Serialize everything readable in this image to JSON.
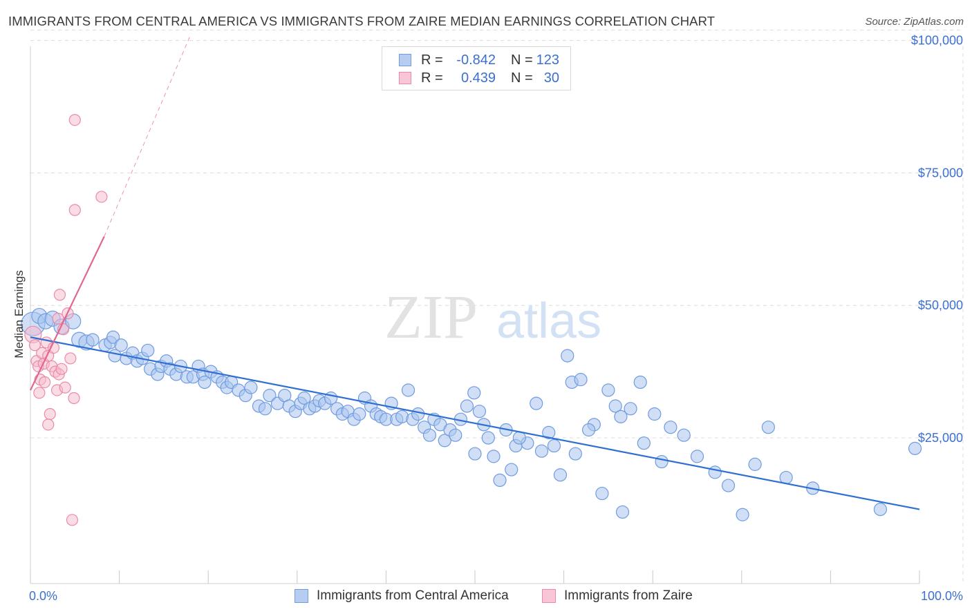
{
  "title": "IMMIGRANTS FROM CENTRAL AMERICA VS IMMIGRANTS FROM ZAIRE MEDIAN EARNINGS CORRELATION CHART",
  "source": "Source: ZipAtlas.com",
  "watermark": {
    "zip": "ZIP",
    "atlas": "atlas"
  },
  "legend": {
    "rows": [
      {
        "r_label": "R =",
        "r_value": "-0.842",
        "n_label": "N =",
        "n_value": "123"
      },
      {
        "r_label": "R =",
        "r_value": "0.439",
        "n_label": "N =",
        "n_value": "30"
      }
    ]
  },
  "bottom_legend": [
    "Immigrants from Central America",
    "Immigrants from Zaire"
  ],
  "colors": {
    "blue_fill": "#a9c4ee",
    "blue_stroke": "#6f9be0",
    "blue_line": "#2f6fd1",
    "pink_fill": "#f6b9cc",
    "pink_stroke": "#ea8aa8",
    "pink_line": "#e06690",
    "axis_label": "#3b6fd0",
    "grid": "#dcdcdc"
  },
  "chart_data": {
    "type": "scatter",
    "title": "IMMIGRANTS FROM CENTRAL AMERICA VS IMMIGRANTS FROM ZAIRE MEDIAN EARNINGS CORRELATION CHART",
    "xlabel": "",
    "ylabel": "Median Earnings",
    "xlim": [
      0,
      100
    ],
    "ylim": [
      0,
      100000
    ],
    "x_tick_labels": [
      "0.0%",
      "100.0%"
    ],
    "y_ticks": [
      25000,
      50000,
      75000,
      100000
    ],
    "y_tick_labels": [
      "$25,000",
      "$50,000",
      "$75,000",
      "$100,000"
    ],
    "grid": true,
    "legend_position": "top-center",
    "series": [
      {
        "name": "Immigrants from Central America",
        "color": "#a9c4ee",
        "trend": {
          "x": [
            0,
            100
          ],
          "y": [
            44000,
            11500
          ]
        },
        "points": [
          [
            0.3,
            46500
          ],
          [
            1.0,
            48000
          ],
          [
            1.7,
            47000
          ],
          [
            2.5,
            47500
          ],
          [
            3.5,
            46000
          ],
          [
            4.8,
            47000
          ],
          [
            5.5,
            43500
          ],
          [
            6.3,
            43000
          ],
          [
            7.0,
            43500
          ],
          [
            8.4,
            42500
          ],
          [
            9.0,
            43000
          ],
          [
            9.3,
            44000
          ],
          [
            9.5,
            40500
          ],
          [
            10.2,
            42500
          ],
          [
            10.8,
            40000
          ],
          [
            11.5,
            41000
          ],
          [
            12.0,
            39500
          ],
          [
            12.6,
            40000
          ],
          [
            13.2,
            41500
          ],
          [
            13.5,
            38000
          ],
          [
            14.3,
            37000
          ],
          [
            14.7,
            38500
          ],
          [
            15.3,
            39500
          ],
          [
            15.7,
            38000
          ],
          [
            16.4,
            37000
          ],
          [
            16.9,
            38500
          ],
          [
            17.6,
            36500
          ],
          [
            18.3,
            36500
          ],
          [
            18.9,
            38500
          ],
          [
            19.4,
            37000
          ],
          [
            19.6,
            35500
          ],
          [
            20.3,
            37500
          ],
          [
            21.0,
            36500
          ],
          [
            21.6,
            35500
          ],
          [
            22.1,
            34500
          ],
          [
            22.6,
            35500
          ],
          [
            23.4,
            34000
          ],
          [
            24.2,
            33000
          ],
          [
            24.8,
            34500
          ],
          [
            25.7,
            31000
          ],
          [
            26.4,
            30500
          ],
          [
            26.9,
            33000
          ],
          [
            27.8,
            31500
          ],
          [
            28.6,
            33000
          ],
          [
            29.1,
            31000
          ],
          [
            29.8,
            30000
          ],
          [
            30.4,
            31500
          ],
          [
            30.8,
            32500
          ],
          [
            31.4,
            30500
          ],
          [
            32.0,
            31000
          ],
          [
            32.5,
            32000
          ],
          [
            33.1,
            31500
          ],
          [
            33.8,
            32500
          ],
          [
            34.5,
            30500
          ],
          [
            35.1,
            29500
          ],
          [
            35.7,
            30000
          ],
          [
            36.4,
            28500
          ],
          [
            37.0,
            29500
          ],
          [
            37.6,
            32500
          ],
          [
            38.3,
            31000
          ],
          [
            38.9,
            29500
          ],
          [
            39.4,
            29000
          ],
          [
            40.0,
            28500
          ],
          [
            40.6,
            31500
          ],
          [
            41.2,
            28500
          ],
          [
            41.8,
            29000
          ],
          [
            42.5,
            34000
          ],
          [
            43.0,
            28500
          ],
          [
            43.6,
            29500
          ],
          [
            44.3,
            27000
          ],
          [
            44.9,
            25500
          ],
          [
            45.4,
            28500
          ],
          [
            46.1,
            27500
          ],
          [
            46.6,
            24500
          ],
          [
            47.2,
            26500
          ],
          [
            47.8,
            25500
          ],
          [
            48.4,
            28500
          ],
          [
            49.1,
            31000
          ],
          [
            49.9,
            33500
          ],
          [
            50.5,
            30000
          ],
          [
            51.0,
            27500
          ],
          [
            51.5,
            25000
          ],
          [
            52.1,
            21500
          ],
          [
            52.8,
            17000
          ],
          [
            53.5,
            26500
          ],
          [
            54.1,
            19000
          ],
          [
            54.6,
            23500
          ],
          [
            55.9,
            24000
          ],
          [
            56.9,
            31500
          ],
          [
            58.3,
            26000
          ],
          [
            58.9,
            23500
          ],
          [
            59.6,
            18000
          ],
          [
            60.4,
            40500
          ],
          [
            60.9,
            35500
          ],
          [
            61.3,
            22000
          ],
          [
            61.9,
            36000
          ],
          [
            63.4,
            27500
          ],
          [
            64.3,
            14500
          ],
          [
            65.8,
            31000
          ],
          [
            66.4,
            29000
          ],
          [
            66.6,
            11000
          ],
          [
            65.0,
            34000
          ],
          [
            68.6,
            35500
          ],
          [
            70.2,
            29500
          ],
          [
            72.0,
            27000
          ],
          [
            80.1,
            10500
          ],
          [
            83.0,
            27000
          ],
          [
            95.6,
            11500
          ],
          [
            99.5,
            23000
          ],
          [
            50.0,
            22000
          ],
          [
            55.0,
            25000
          ],
          [
            57.5,
            22500
          ],
          [
            62.8,
            26500
          ],
          [
            67.5,
            30500
          ],
          [
            69.0,
            24000
          ],
          [
            71.0,
            20500
          ],
          [
            73.5,
            25500
          ],
          [
            75.0,
            21500
          ],
          [
            77.0,
            18500
          ],
          [
            78.5,
            16000
          ],
          [
            81.5,
            20000
          ],
          [
            85.0,
            17500
          ],
          [
            88.0,
            15500
          ]
        ]
      },
      {
        "name": "Immigrants from Zaire",
        "color": "#f6b9cc",
        "trend": {
          "x": [
            0,
            8.3
          ],
          "y": [
            34000,
            63000
          ],
          "dashed_x": [
            8.3,
            18.0
          ],
          "dashed_y": [
            63000,
            101000
          ]
        },
        "points": [
          [
            0.3,
            44500
          ],
          [
            0.5,
            42500
          ],
          [
            0.7,
            39500
          ],
          [
            0.9,
            38500
          ],
          [
            1.1,
            36000
          ],
          [
            1.3,
            41000
          ],
          [
            1.5,
            39000
          ],
          [
            1.6,
            35500
          ],
          [
            1.8,
            43000
          ],
          [
            2.0,
            40500
          ],
          [
            2.2,
            29500
          ],
          [
            2.0,
            27500
          ],
          [
            2.4,
            38500
          ],
          [
            2.6,
            42000
          ],
          [
            2.8,
            37500
          ],
          [
            3.0,
            34000
          ],
          [
            3.1,
            47500
          ],
          [
            3.2,
            37000
          ],
          [
            3.3,
            52000
          ],
          [
            3.5,
            38000
          ],
          [
            3.7,
            45500
          ],
          [
            3.9,
            34500
          ],
          [
            4.2,
            48500
          ],
          [
            4.5,
            40000
          ],
          [
            4.7,
            9500
          ],
          [
            4.9,
            32500
          ],
          [
            5.0,
            68000
          ],
          [
            5.0,
            85000
          ],
          [
            8.0,
            70500
          ],
          [
            1.0,
            33500
          ]
        ]
      }
    ]
  }
}
